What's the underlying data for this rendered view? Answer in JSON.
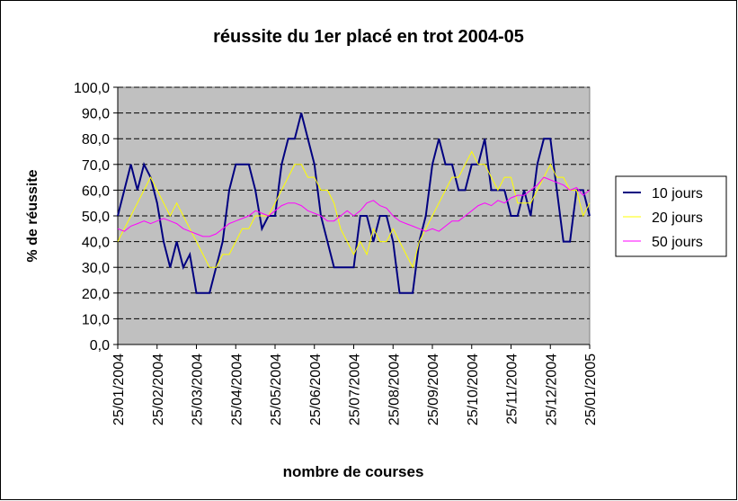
{
  "chart_data": {
    "type": "line",
    "title": "réussite du 1er placé en trot 2004-05",
    "x_label": "nombre de courses",
    "y_label": "% de réussite",
    "categories": [
      "25/01/2004",
      null,
      null,
      null,
      null,
      null,
      "25/02/2004",
      null,
      null,
      null,
      null,
      null,
      "25/03/2004",
      null,
      null,
      null,
      null,
      null,
      "25/04/2004",
      null,
      null,
      null,
      null,
      null,
      "25/05/2004",
      null,
      null,
      null,
      null,
      null,
      "25/06/2004",
      null,
      null,
      null,
      null,
      null,
      "25/07/2004",
      null,
      null,
      null,
      null,
      null,
      "25/08/2004",
      null,
      null,
      null,
      null,
      null,
      "25/09/2004",
      null,
      null,
      null,
      null,
      null,
      "25/10/2004",
      null,
      null,
      null,
      null,
      null,
      "25/11/2004",
      null,
      null,
      null,
      null,
      null,
      "25/12/2004",
      null,
      null,
      null,
      null,
      null,
      "25/01/2005"
    ],
    "series": [
      {
        "name": "10 jours",
        "color": "#000080",
        "values": [
          50,
          60,
          70,
          60,
          70,
          65,
          55,
          40,
          30,
          40,
          30,
          35,
          20,
          20,
          20,
          30,
          40,
          60,
          70,
          70,
          70,
          60,
          45,
          50,
          50,
          70,
          80,
          80,
          90,
          80,
          70,
          50,
          40,
          30,
          30,
          30,
          30,
          50,
          50,
          40,
          50,
          50,
          40,
          20,
          20,
          20,
          40,
          50,
          70,
          80,
          70,
          70,
          60,
          60,
          70,
          70,
          80,
          60,
          60,
          60,
          50,
          50,
          60,
          50,
          70,
          80,
          80,
          60,
          40,
          40,
          60,
          60,
          50
        ]
      },
      {
        "name": "20 jours",
        "color": "#ffff00",
        "values": [
          40,
          45,
          50,
          55,
          60,
          65,
          60,
          55,
          50,
          55,
          50,
          45,
          40,
          35,
          30,
          30,
          35,
          35,
          40,
          45,
          45,
          50,
          50,
          50,
          55,
          60,
          65,
          70,
          70,
          65,
          65,
          60,
          60,
          55,
          45,
          40,
          35,
          40,
          35,
          45,
          40,
          40,
          45,
          40,
          35,
          30,
          40,
          45,
          50,
          55,
          60,
          65,
          65,
          70,
          75,
          70,
          70,
          65,
          60,
          65,
          65,
          55,
          55,
          55,
          60,
          65,
          70,
          65,
          65,
          60,
          60,
          50,
          55
        ]
      },
      {
        "name": "50 jours",
        "color": "#ff00ff",
        "values": [
          45,
          44,
          46,
          47,
          48,
          47,
          48,
          49,
          48,
          47,
          45,
          44,
          43,
          42,
          42,
          43,
          45,
          47,
          48,
          49,
          50,
          52,
          51,
          50,
          52,
          54,
          55,
          55,
          54,
          52,
          51,
          50,
          48,
          48,
          50,
          52,
          50,
          52,
          55,
          56,
          54,
          53,
          50,
          48,
          47,
          46,
          45,
          44,
          45,
          44,
          46,
          48,
          48,
          50,
          52,
          54,
          55,
          54,
          56,
          55,
          57,
          58,
          58,
          60,
          62,
          65,
          64,
          63,
          62,
          60,
          61,
          58,
          60
        ]
      }
    ],
    "ylim": [
      0,
      100
    ],
    "yticks": [
      {
        "value": 0,
        "label": "0,0"
      },
      {
        "value": 10,
        "label": "10,0"
      },
      {
        "value": 20,
        "label": "20,0"
      },
      {
        "value": 30,
        "label": "30,0"
      },
      {
        "value": 40,
        "label": "40,0"
      },
      {
        "value": 50,
        "label": "50,0"
      },
      {
        "value": 60,
        "label": "60,0"
      },
      {
        "value": 70,
        "label": "70,0"
      },
      {
        "value": 80,
        "label": "80,0"
      },
      {
        "value": 90,
        "label": "90,0"
      },
      {
        "value": 100,
        "label": "100,0"
      }
    ],
    "grid": true,
    "legend": "right",
    "plot_background": "#c0c0c0"
  }
}
